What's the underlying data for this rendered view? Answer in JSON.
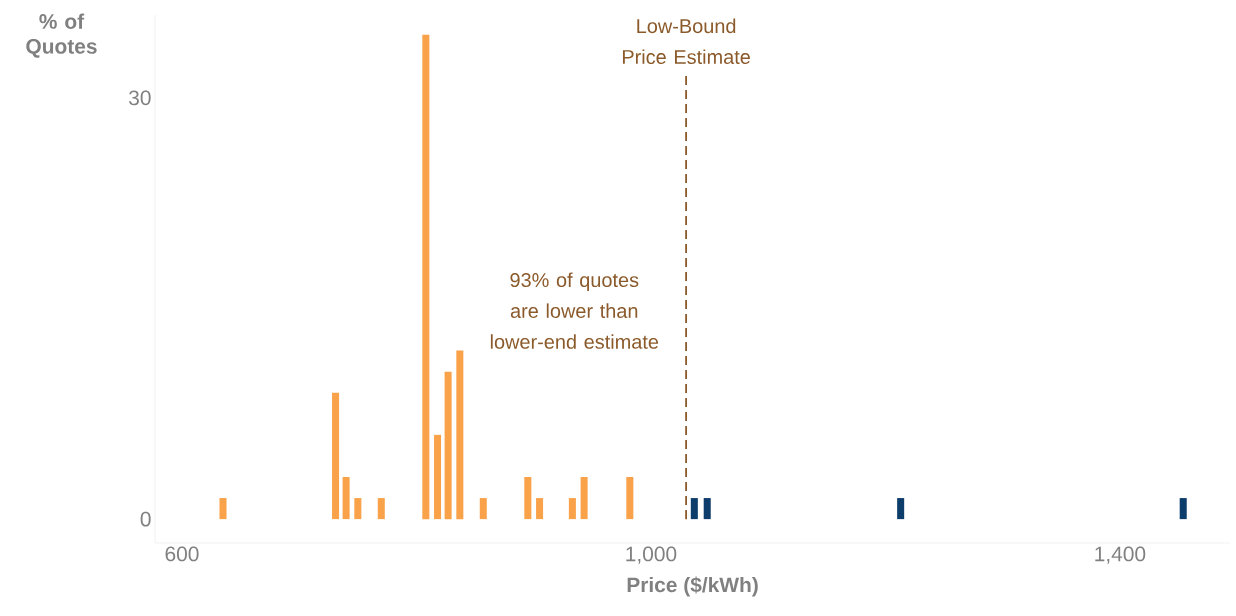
{
  "chart_data": {
    "type": "bar",
    "xlabel": "Price ($/kWh)",
    "ylabel": "% of Quotes",
    "xlim": [
      577,
      1494
    ],
    "ylim": [
      -1.7,
      35.9
    ],
    "xticks": [
      {
        "value": 600,
        "label": "600"
      },
      {
        "value": 1000,
        "label": "1,000"
      },
      {
        "value": 1400,
        "label": "1,400"
      }
    ],
    "yticks": [
      0,
      30
    ],
    "series": [
      {
        "color": "#f9a24a",
        "x": [
          635,
          731,
          740,
          750,
          770,
          808,
          818,
          827,
          837,
          857,
          895,
          905,
          933,
          943,
          982
        ],
        "values": [
          1.5,
          9,
          3,
          1.5,
          1.5,
          34.5,
          6,
          10.5,
          12,
          1.5,
          3,
          1.5,
          1.5,
          3,
          3
        ]
      },
      {
        "color": "#0d3d6b",
        "x": [
          1037,
          1048,
          1213,
          1454
        ],
        "values": [
          1.5,
          1.5,
          1.5,
          1.5
        ]
      }
    ],
    "ref_lines": [
      {
        "axis": "x",
        "value": 1030,
        "label": "Low-Bound Price Estimate",
        "color": "#8b5a2b",
        "line_style": "dashed"
      }
    ],
    "annotations": [
      "93% of quotes are lower than lower-end estimate"
    ]
  }
}
